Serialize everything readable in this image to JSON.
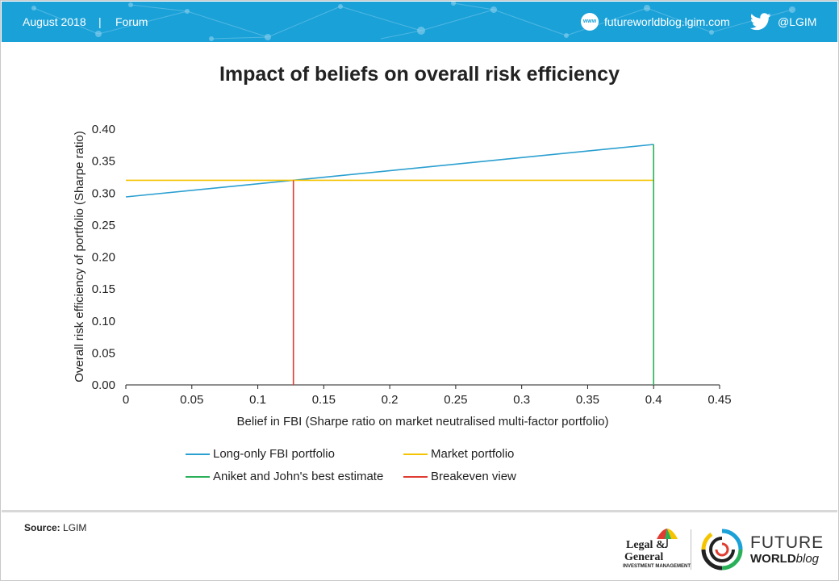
{
  "header": {
    "date": "August 2018",
    "separator": "|",
    "section": "Forum",
    "website": "futureworldblog.lgim.com",
    "www_icon_label": "www",
    "handle": "@LGIM",
    "icons": {
      "website": "globe-www-icon",
      "social": "twitter-bird-icon"
    },
    "bar_color": "#1aa1d8"
  },
  "chart_data": {
    "type": "line",
    "title": "Impact of beliefs on overall risk efficiency",
    "xlabel": "Belief in FBI (Sharpe ratio on market neutralised multi-factor portfolio)",
    "ylabel": "Overall risk efficiency of portfolio (Sharpe ratio)",
    "xlim": [
      0,
      0.45
    ],
    "ylim": [
      0,
      0.4
    ],
    "x_ticks": [
      0,
      0.05,
      0.1,
      0.15,
      0.2,
      0.25,
      0.3,
      0.35,
      0.4,
      0.45
    ],
    "x_tick_labels": [
      "0",
      "0.05",
      "0.1",
      "0.15",
      "0.2",
      "0.25",
      "0.3",
      "0.35",
      "0.4",
      "0.45"
    ],
    "y_ticks": [
      0,
      0.05,
      0.1,
      0.15,
      0.2,
      0.25,
      0.3,
      0.35,
      0.4
    ],
    "y_tick_labels": [
      "0.00",
      "0.05",
      "0.10",
      "0.15",
      "0.20",
      "0.25",
      "0.30",
      "0.35",
      "0.40"
    ],
    "grid": false,
    "legend_position": "bottom",
    "series": [
      {
        "name": "Long-only FBI portfolio",
        "color": "#2a9fd0",
        "points": [
          [
            0,
            0.294
          ],
          [
            0.4,
            0.376
          ]
        ]
      },
      {
        "name": "Market portfolio",
        "color": "#f5c400",
        "points": [
          [
            0,
            0.32
          ],
          [
            0.4,
            0.32
          ]
        ]
      },
      {
        "name": "Aniket and John's best estimate",
        "color": "#2bb05a",
        "points": [
          [
            0.4,
            0
          ],
          [
            0.4,
            0.376
          ]
        ]
      },
      {
        "name": "Breakeven view",
        "color": "#e03c31",
        "points": [
          [
            0.127,
            0
          ],
          [
            0.127,
            0.32
          ]
        ]
      }
    ]
  },
  "footer": {
    "source_label": "Source:",
    "source_value": "LGIM",
    "lg_logo": {
      "line1": "Legal &",
      "line2": "General",
      "line3": "INVESTMENT MANAGEMENT",
      "icon": "umbrella-icon"
    },
    "fw_logo": {
      "line1": "FUTURE",
      "line2_bold": "WORLD",
      "line2_light": "blog",
      "icon": "rings-icon"
    }
  }
}
